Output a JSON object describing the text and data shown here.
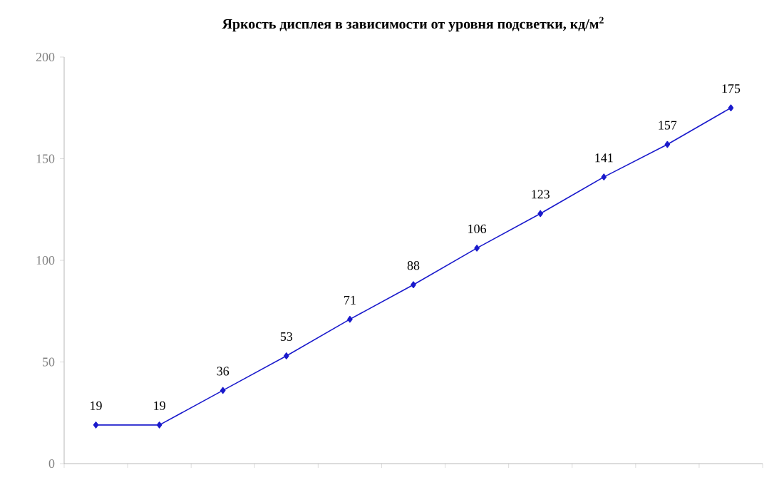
{
  "chart_data": {
    "type": "line",
    "title": "Яркость дисплея в зависимости от уровня подсветки, кд/м$^{2}$",
    "categories": [
      null,
      null,
      null,
      null,
      null,
      null,
      null,
      null,
      null,
      null,
      null
    ],
    "values": [
      19,
      19,
      36,
      53,
      71,
      88,
      106,
      123,
      141,
      157,
      175
    ],
    "color": "#1a1acc",
    "marker": "diamond",
    "data_labels": true,
    "ylim": [
      0,
      200
    ],
    "yticks": [
      0,
      50,
      100,
      150,
      200
    ],
    "grid": false
  }
}
